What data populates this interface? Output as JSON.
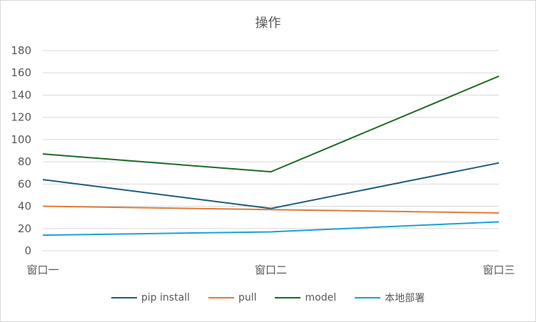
{
  "chart_data": {
    "type": "line",
    "title": "操作",
    "categories": [
      "窗口一",
      "窗口二",
      "窗口三"
    ],
    "ylim": [
      0,
      180
    ],
    "yticks": [
      0,
      20,
      40,
      60,
      80,
      100,
      120,
      140,
      160,
      180
    ],
    "ytick_labels": [
      "0",
      "20",
      "40",
      "60",
      "80",
      "100",
      "120",
      "140",
      "160",
      "180"
    ],
    "grid": true,
    "legend_position": "bottom",
    "series": [
      {
        "name": "pip install",
        "color": "#1f5c7a",
        "values": [
          64,
          38,
          79
        ]
      },
      {
        "name": "pull",
        "color": "#e07b39",
        "values": [
          40,
          37,
          34
        ]
      },
      {
        "name": "model",
        "color": "#1e6b27",
        "values": [
          87,
          71,
          157
        ]
      },
      {
        "name": "本地部署",
        "color": "#1ba1d6",
        "values": [
          14,
          17,
          26
        ]
      }
    ]
  }
}
